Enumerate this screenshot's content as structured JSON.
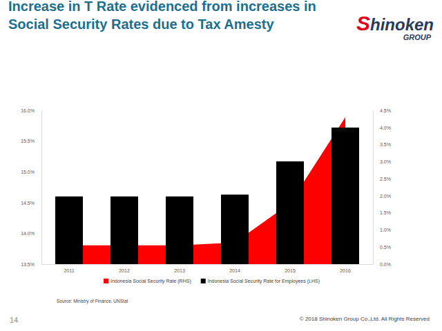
{
  "chart_data": {
    "type": "bar",
    "title": "Increase in T Rate evidenced from increases in Social Security Rates due to Tax Amesty",
    "categories": [
      "2011",
      "2012",
      "2013",
      "2014",
      "2015",
      "2016"
    ],
    "series": [
      {
        "name": "Indonesia Social Security Rate (RHS)",
        "type": "area",
        "color": "#ff0000",
        "axis": "y2",
        "values": [
          0.55,
          0.55,
          0.55,
          0.63,
          1.78,
          4.3
        ]
      },
      {
        "name": "Indonesia Social Security Rate for Employees (LHS)",
        "type": "bar",
        "color": "#000000",
        "values": [
          14.6,
          14.6,
          14.6,
          14.63,
          15.17,
          15.72
        ]
      }
    ],
    "ylim": [
      13.5,
      16.0
    ],
    "yticks": [
      {
        "value": 13.5,
        "label": "13.5%"
      },
      {
        "value": 14.0,
        "label": "14.0%"
      },
      {
        "value": 14.5,
        "label": "14.5%"
      },
      {
        "value": 15.0,
        "label": "15.0%"
      },
      {
        "value": 15.5,
        "label": "15.5%"
      },
      {
        "value": 16.0,
        "label": "16.0%"
      }
    ],
    "y2lim": [
      0,
      4.5
    ],
    "y2ticks": [
      {
        "value": 0,
        "label": "0.0%"
      },
      {
        "value": 0.5,
        "label": "0.5%"
      },
      {
        "value": 1.0,
        "label": "1.0%"
      },
      {
        "value": 1.5,
        "label": "1.5%"
      },
      {
        "value": 2.0,
        "label": "2.0%"
      },
      {
        "value": 2.5,
        "label": "2.5%"
      },
      {
        "value": 3.0,
        "label": "3.0%"
      },
      {
        "value": 3.5,
        "label": "3.5%"
      },
      {
        "value": 4.0,
        "label": "4.0%"
      },
      {
        "value": 4.5,
        "label": "4.5%"
      }
    ],
    "legend": "bottom",
    "grid": false,
    "source": "Source: Ministry of Finance, UNStat",
    "page_number": "14",
    "copyright": "© 2018 Shinoken Group Co.,Ltd. All Rights Reserved",
    "logo": "Shinoken",
    "logo_group": "GROUP"
  }
}
